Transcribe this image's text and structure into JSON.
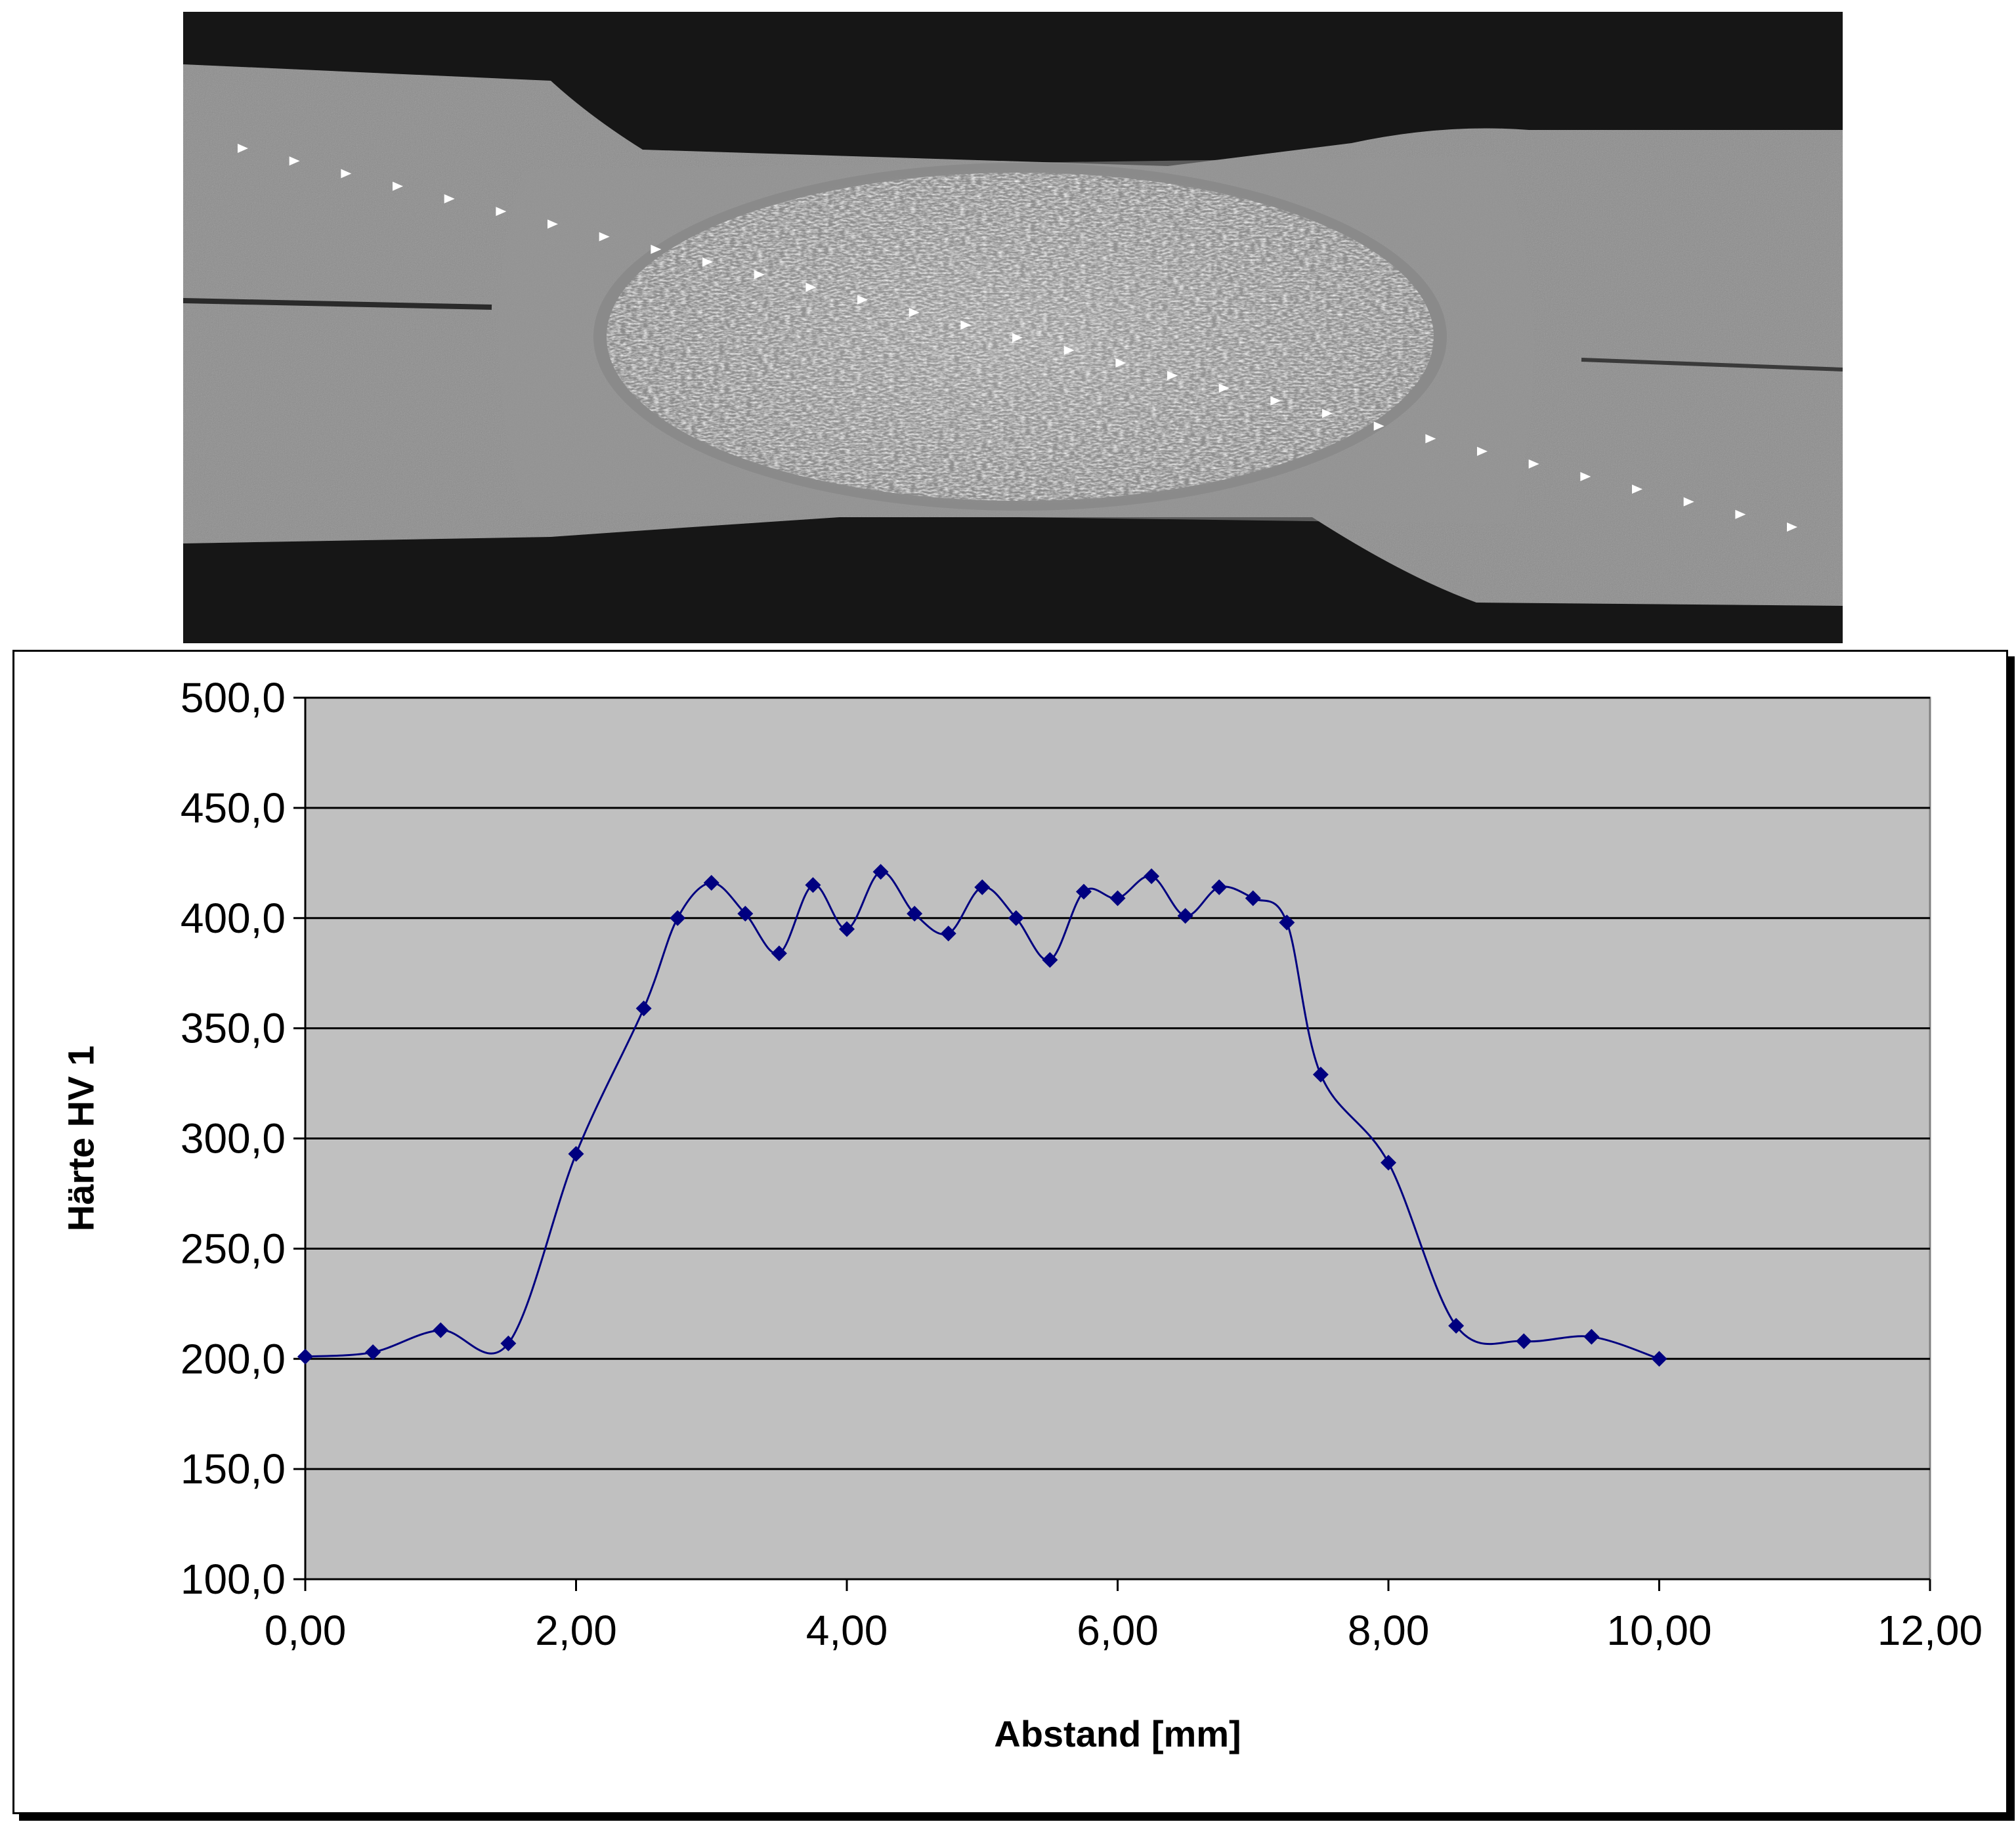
{
  "micrograph": {
    "subject": "weld-cross-section-micrograph"
  },
  "chart_data": {
    "type": "line",
    "title": "",
    "xlabel": "Abstand [mm]",
    "ylabel": "Härte HV 1",
    "xlim": [
      0,
      12
    ],
    "ylim": [
      100,
      500
    ],
    "x_ticks": [
      0,
      2,
      4,
      6,
      8,
      10,
      12
    ],
    "x_tick_labels": [
      "0,00",
      "2,00",
      "4,00",
      "6,00",
      "8,00",
      "10,00",
      "12,00"
    ],
    "y_ticks": [
      100,
      150,
      200,
      250,
      300,
      350,
      400,
      450,
      500
    ],
    "y_tick_labels": [
      "100,0",
      "150,0",
      "200,0",
      "250,0",
      "300,0",
      "350,0",
      "400,0",
      "450,0",
      "500,0"
    ],
    "grid": "horizontal",
    "legend": "none",
    "plot_background": "#c0c0c0",
    "series": [
      {
        "color": "#000080",
        "marker": "diamond",
        "smooth": true,
        "x": [
          0.0,
          0.5,
          1.0,
          1.5,
          2.0,
          2.5,
          2.75,
          3.0,
          3.25,
          3.5,
          3.75,
          4.0,
          4.25,
          4.5,
          4.75,
          5.0,
          5.25,
          5.5,
          5.75,
          6.0,
          6.25,
          6.5,
          6.75,
          7.0,
          7.25,
          7.5,
          8.0,
          8.5,
          9.0,
          9.5,
          10.0
        ],
        "y": [
          201,
          203,
          213,
          207,
          293,
          359,
          400,
          416,
          402,
          384,
          415,
          395,
          421,
          402,
          393,
          414,
          400,
          381,
          412,
          409,
          419,
          401,
          414,
          409,
          398,
          329,
          289,
          215,
          208,
          210,
          200
        ]
      }
    ]
  }
}
